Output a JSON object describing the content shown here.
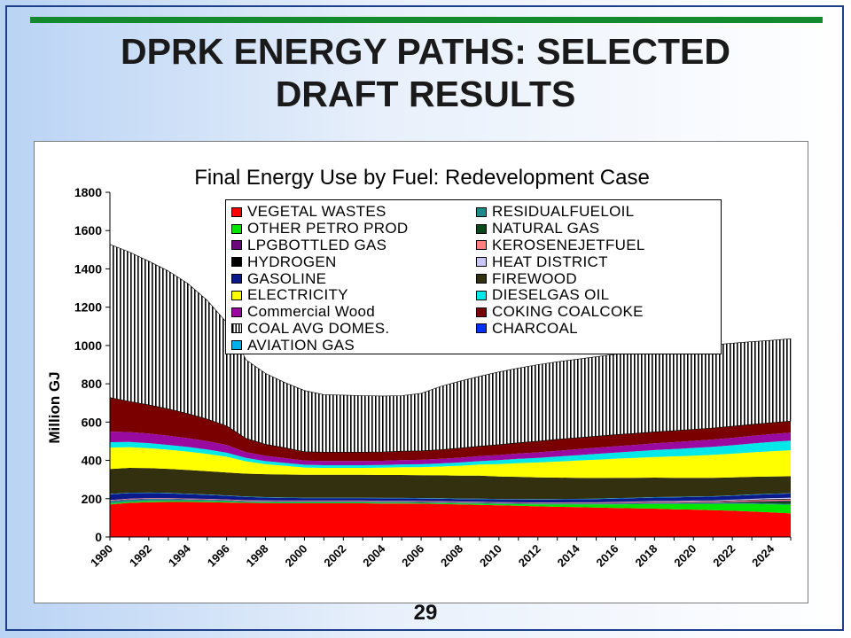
{
  "slide": {
    "title_line1": "DPRK ENERGY PATHS: SELECTED",
    "title_line2": "DRAFT RESULTS",
    "page_number": "29",
    "colors": {
      "accent_bar": "#138a2d",
      "frame": "#1c3f8a"
    }
  },
  "chart_data": {
    "type": "area",
    "stacked": true,
    "title": "Final Energy Use by Fuel: Redevelopment Case",
    "ylabel": "Million GJ",
    "xlabel": "",
    "ylim": [
      0,
      1800
    ],
    "y_ticks": [
      0,
      200,
      400,
      600,
      800,
      1000,
      1200,
      1400,
      1600,
      1800
    ],
    "x_tick_labels": [
      "1990",
      "1992",
      "1994",
      "1996",
      "1998",
      "2000",
      "2002",
      "2004",
      "2006",
      "2008",
      "2010",
      "2012",
      "2014",
      "2016",
      "2018",
      "2020",
      "2022",
      "2024"
    ],
    "legend_placement": "top-center",
    "x": [
      1990,
      1991,
      1992,
      1993,
      1994,
      1995,
      1996,
      1997,
      1998,
      1999,
      2000,
      2001,
      2002,
      2003,
      2004,
      2005,
      2006,
      2007,
      2008,
      2009,
      2010,
      2011,
      2012,
      2013,
      2014,
      2015,
      2016,
      2017,
      2018,
      2019,
      2020,
      2021,
      2022,
      2023,
      2024,
      2025
    ],
    "series": [
      {
        "name": "VEGETAL WASTES",
        "color": "#ff0000",
        "values": [
          170,
          178,
          182,
          183,
          183,
          182,
          180,
          178,
          177,
          176,
          176,
          176,
          176,
          176,
          175,
          175,
          174,
          172,
          170,
          168,
          165,
          163,
          160,
          158,
          156,
          154,
          152,
          150,
          148,
          145,
          143,
          140,
          137,
          133,
          128,
          123
        ]
      },
      {
        "name": "OTHER PETRO PROD",
        "color": "#00e600",
        "values": [
          6,
          6,
          6,
          6,
          5,
          5,
          5,
          4,
          4,
          4,
          4,
          4,
          4,
          4,
          4,
          4,
          4,
          5,
          5,
          6,
          7,
          8,
          10,
          12,
          14,
          16,
          18,
          21,
          24,
          27,
          30,
          33,
          36,
          39,
          42,
          45
        ]
      },
      {
        "name": "LPGBOTTLED GAS",
        "color": "#6a0a7a",
        "values": [
          2,
          2,
          2,
          2,
          2,
          2,
          2,
          2,
          2,
          2,
          2,
          2,
          2,
          2,
          2,
          2,
          2,
          2,
          2,
          2,
          2,
          2,
          2,
          2,
          2,
          2,
          3,
          3,
          3,
          3,
          3,
          3,
          3,
          4,
          4,
          4
        ]
      },
      {
        "name": "HYDROGEN",
        "color": "#000000",
        "values": [
          0,
          0,
          0,
          0,
          0,
          0,
          0,
          0,
          0,
          0,
          0,
          0,
          0,
          0,
          0,
          0,
          0,
          0,
          0,
          0,
          0,
          0,
          0,
          0,
          1,
          1,
          1,
          1,
          2,
          2,
          2,
          3,
          3,
          3,
          4,
          4
        ]
      },
      {
        "name": "GASOLINE",
        "color": "#0a1a8a",
        "values": [
          30,
          29,
          27,
          25,
          23,
          21,
          19,
          17,
          15,
          14,
          13,
          13,
          13,
          13,
          13,
          13,
          13,
          13,
          13,
          14,
          14,
          15,
          15,
          16,
          16,
          17,
          17,
          18,
          18,
          19,
          19,
          20,
          20,
          21,
          21,
          22
        ]
      },
      {
        "name": "ELECTRICITY",
        "color": "#ffff00",
        "values": [
          112,
          108,
          104,
          100,
          96,
          90,
          82,
          64,
          52,
          46,
          38,
          36,
          36,
          36,
          38,
          40,
          42,
          46,
          52,
          58,
          65,
          72,
          78,
          84,
          90,
          96,
          100,
          104,
          108,
          112,
          116,
          120,
          124,
          128,
          132,
          136
        ]
      },
      {
        "name": "Commercial Wood",
        "color": "#9a0aa0",
        "values": [
          55,
          52,
          50,
          48,
          46,
          44,
          40,
          30,
          28,
          25,
          22,
          22,
          22,
          22,
          22,
          22,
          23,
          24,
          25,
          26,
          27,
          28,
          29,
          30,
          31,
          32,
          33,
          34,
          35,
          36,
          37,
          38,
          39,
          40,
          41,
          42
        ]
      },
      {
        "name": "COAL AVG DOMES.",
        "color": "#ffffff",
        "pattern": "vertical-stripes",
        "values": [
          800,
          780,
          750,
          720,
          680,
          620,
          540,
          410,
          370,
          340,
          320,
          300,
          298,
          295,
          292,
          290,
          300,
          330,
          350,
          365,
          380,
          390,
          400,
          405,
          410,
          415,
          420,
          425,
          430,
          432,
          434,
          434,
          434,
          432,
          430,
          430
        ]
      },
      {
        "name": "AVIATION GAS",
        "color": "#00b0e8",
        "values": [
          2,
          2,
          2,
          2,
          2,
          2,
          2,
          2,
          2,
          2,
          2,
          2,
          2,
          2,
          2,
          2,
          2,
          2,
          2,
          2,
          2,
          2,
          2,
          2,
          2,
          2,
          2,
          2,
          2,
          2,
          2,
          2,
          2,
          2,
          2,
          2
        ]
      },
      {
        "name": "RESIDUALFUELOIL",
        "color": "#1a8a8a",
        "values": [
          12,
          11,
          10,
          9,
          8,
          7,
          6,
          5,
          5,
          5,
          5,
          5,
          5,
          5,
          5,
          5,
          5,
          5,
          5,
          5,
          5,
          5,
          5,
          5,
          5,
          5,
          5,
          5,
          5,
          5,
          5,
          5,
          5,
          5,
          5,
          5
        ]
      },
      {
        "name": "NATURAL GAS",
        "color": "#0a4a1a",
        "values": [
          0,
          0,
          0,
          0,
          0,
          0,
          0,
          0,
          0,
          0,
          0,
          0,
          0,
          0,
          0,
          0,
          0,
          0,
          0,
          0,
          0,
          0,
          0,
          0,
          0,
          0,
          0,
          0,
          0,
          0,
          0,
          0,
          3,
          6,
          10,
          14
        ]
      },
      {
        "name": "KEROSENEJETFUEL",
        "color": "#ff8080",
        "values": [
          3,
          3,
          3,
          3,
          3,
          3,
          3,
          3,
          3,
          3,
          3,
          3,
          3,
          3,
          3,
          3,
          3,
          3,
          3,
          3,
          3,
          3,
          3,
          3,
          3,
          3,
          4,
          4,
          4,
          4,
          4,
          4,
          4,
          5,
          5,
          5
        ]
      },
      {
        "name": "HEAT DISTRICT",
        "color": "#c8c8ff",
        "values": [
          0,
          0,
          0,
          0,
          0,
          0,
          0,
          0,
          0,
          0,
          0,
          0,
          0,
          0,
          0,
          0,
          0,
          0,
          0,
          0,
          0,
          0,
          0,
          0,
          0,
          0,
          1,
          1,
          2,
          2,
          3,
          3,
          4,
          4,
          5,
          5
        ]
      },
      {
        "name": "FIREWOOD",
        "color": "#333010",
        "values": [
          130,
          130,
          128,
          126,
          124,
          122,
          120,
          120,
          120,
          120,
          120,
          120,
          120,
          120,
          120,
          120,
          120,
          120,
          120,
          120,
          118,
          116,
          114,
          112,
          110,
          108,
          106,
          104,
          102,
          100,
          98,
          96,
          94,
          92,
          90,
          88
        ]
      },
      {
        "name": "DIESELGAS OIL",
        "color": "#00e8e8",
        "values": [
          28,
          27,
          26,
          25,
          24,
          23,
          21,
          18,
          16,
          15,
          14,
          14,
          14,
          14,
          14,
          15,
          15,
          16,
          17,
          18,
          20,
          22,
          24,
          26,
          28,
          30,
          32,
          34,
          36,
          38,
          40,
          42,
          44,
          46,
          48,
          50
        ]
      },
      {
        "name": "COKING COALCOKE",
        "color": "#7a0000",
        "values": [
          178,
          160,
          150,
          140,
          128,
          115,
          100,
          72,
          60,
          54,
          46,
          46,
          46,
          46,
          46,
          47,
          47,
          48,
          50,
          52,
          54,
          56,
          58,
          60,
          60,
          60,
          60,
          60,
          60,
          60,
          60,
          60,
          60,
          60,
          60,
          60
        ]
      },
      {
        "name": "CHARCOAL",
        "color": "#0030ff",
        "values": [
          0,
          0,
          0,
          0,
          0,
          0,
          0,
          0,
          0,
          0,
          0,
          0,
          0,
          0,
          0,
          0,
          0,
          0,
          0,
          0,
          0,
          0,
          0,
          0,
          0,
          0,
          0,
          0,
          0,
          0,
          0,
          0,
          0,
          0,
          0,
          0
        ]
      }
    ],
    "legend_order": [
      "VEGETAL WASTES",
      "RESIDUALFUELOIL",
      "OTHER PETRO PROD",
      "NATURAL GAS",
      "LPGBOTTLED GAS",
      "KEROSENEJETFUEL",
      "HYDROGEN",
      "HEAT DISTRICT",
      "GASOLINE",
      "FIREWOOD",
      "ELECTRICITY",
      "DIESELGAS OIL",
      "Commercial Wood",
      "COKING COALCOKE",
      "COAL AVG DOMES.",
      "CHARCOAL",
      "AVIATION GAS"
    ],
    "stack_order_bottom_to_top": [
      "VEGETAL WASTES",
      "OTHER PETRO PROD",
      "RESIDUALFUELOIL",
      "NATURAL GAS",
      "LPGBOTTLED GAS",
      "KEROSENEJETFUEL",
      "HYDROGEN",
      "HEAT DISTRICT",
      "GASOLINE",
      "AVIATION GAS",
      "CHARCOAL",
      "FIREWOOD",
      "ELECTRICITY",
      "DIESELGAS OIL",
      "Commercial Wood",
      "COKING COALCOKE",
      "COAL AVG DOMES."
    ]
  }
}
